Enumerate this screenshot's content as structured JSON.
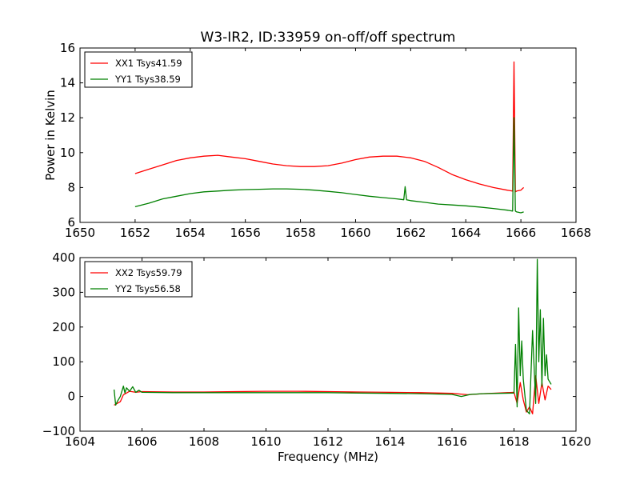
{
  "title": "W3-IR2, ID:33959 on-off/off spectrum",
  "colors": {
    "xx": "#ff0000",
    "yy": "#008000"
  },
  "chart_data": [
    {
      "type": "line",
      "title": "W3-IR2, ID:33959 on-off/off spectrum",
      "xlabel": "",
      "ylabel": "Power in Kelvin",
      "xlim": [
        1650,
        1668
      ],
      "ylim": [
        6,
        16
      ],
      "xticks": [
        1650,
        1652,
        1654,
        1656,
        1658,
        1660,
        1662,
        1664,
        1666,
        1668
      ],
      "yticks": [
        6,
        8,
        10,
        12,
        14,
        16
      ],
      "grid": false,
      "legend": "top-left",
      "series": [
        {
          "name": "XX1 Tsys41.59",
          "color": "#ff0000",
          "x": [
            1652.0,
            1652.5,
            1653.0,
            1653.5,
            1654.0,
            1654.5,
            1655.0,
            1655.5,
            1656.0,
            1656.5,
            1657.0,
            1657.5,
            1658.0,
            1658.5,
            1659.0,
            1659.5,
            1660.0,
            1660.5,
            1661.0,
            1661.5,
            1662.0,
            1662.5,
            1663.0,
            1663.5,
            1664.0,
            1664.5,
            1665.0,
            1665.5,
            1665.7,
            1665.75,
            1665.8,
            1665.85,
            1666.0,
            1666.1
          ],
          "y": [
            8.8,
            9.05,
            9.3,
            9.55,
            9.7,
            9.8,
            9.85,
            9.75,
            9.65,
            9.5,
            9.35,
            9.25,
            9.2,
            9.2,
            9.25,
            9.4,
            9.6,
            9.75,
            9.8,
            9.8,
            9.7,
            9.5,
            9.15,
            8.75,
            8.45,
            8.2,
            8.0,
            7.85,
            7.8,
            15.2,
            7.75,
            7.8,
            7.85,
            8.0
          ]
        },
        {
          "name": "YY1 Tsys38.59",
          "color": "#008000",
          "x": [
            1652.0,
            1652.5,
            1653.0,
            1653.5,
            1654.0,
            1654.5,
            1655.0,
            1655.5,
            1656.0,
            1656.5,
            1657.0,
            1657.5,
            1658.0,
            1658.5,
            1659.0,
            1659.5,
            1660.0,
            1660.5,
            1661.0,
            1661.5,
            1661.75,
            1661.8,
            1661.85,
            1662.0,
            1662.5,
            1663.0,
            1663.5,
            1664.0,
            1664.5,
            1665.0,
            1665.5,
            1665.7,
            1665.75,
            1665.8,
            1665.85,
            1666.0,
            1666.1
          ],
          "y": [
            6.9,
            7.1,
            7.35,
            7.5,
            7.65,
            7.75,
            7.8,
            7.85,
            7.88,
            7.9,
            7.92,
            7.92,
            7.9,
            7.85,
            7.78,
            7.7,
            7.6,
            7.5,
            7.42,
            7.35,
            7.3,
            8.05,
            7.3,
            7.25,
            7.15,
            7.05,
            7.0,
            6.95,
            6.88,
            6.8,
            6.7,
            6.65,
            12.0,
            6.65,
            6.6,
            6.55,
            6.6
          ]
        }
      ]
    },
    {
      "type": "line",
      "title": "",
      "xlabel": "Frequency (MHz)",
      "ylabel": "",
      "xlim": [
        1604,
        1620
      ],
      "ylim": [
        -100,
        400
      ],
      "xticks": [
        1604,
        1606,
        1608,
        1610,
        1612,
        1614,
        1616,
        1618,
        1620
      ],
      "yticks": [
        -100,
        0,
        100,
        200,
        300,
        400
      ],
      "grid": false,
      "legend": "top-left",
      "series": [
        {
          "name": "XX2 Tsys59.79",
          "color": "#ff0000",
          "x": [
            1605.1,
            1605.2,
            1605.3,
            1605.4,
            1605.5,
            1605.6,
            1605.8,
            1606.0,
            1607.0,
            1608.0,
            1609.0,
            1610.0,
            1611.0,
            1612.0,
            1613.0,
            1614.0,
            1615.0,
            1616.0,
            1616.5,
            1617.0,
            1617.5,
            1618.0,
            1618.1,
            1618.2,
            1618.3,
            1618.4,
            1618.5,
            1618.6,
            1618.7,
            1618.8,
            1618.9,
            1619.0,
            1619.1,
            1619.2
          ],
          "y": [
            -25,
            -20,
            -15,
            5,
            10,
            15,
            12,
            14,
            13,
            13,
            14,
            15,
            15,
            14,
            13,
            12,
            11,
            9,
            5,
            8,
            10,
            12,
            -20,
            40,
            -10,
            -45,
            -30,
            -50,
            60,
            -20,
            40,
            -10,
            30,
            20
          ]
        },
        {
          "name": "YY2 Tsys56.58",
          "color": "#008000",
          "x": [
            1605.1,
            1605.15,
            1605.2,
            1605.3,
            1605.4,
            1605.45,
            1605.5,
            1605.6,
            1605.7,
            1605.8,
            1605.9,
            1606.0,
            1607.0,
            1608.0,
            1609.0,
            1610.0,
            1611.0,
            1612.0,
            1613.0,
            1614.0,
            1615.0,
            1616.0,
            1616.3,
            1616.6,
            1617.0,
            1617.5,
            1618.0,
            1618.05,
            1618.1,
            1618.15,
            1618.2,
            1618.25,
            1618.3,
            1618.4,
            1618.5,
            1618.6,
            1618.7,
            1618.75,
            1618.8,
            1618.85,
            1618.9,
            1618.95,
            1619.0,
            1619.05,
            1619.1,
            1619.2
          ],
          "y": [
            20,
            -25,
            -15,
            0,
            30,
            10,
            25,
            15,
            28,
            12,
            18,
            12,
            11,
            11,
            11,
            11,
            11,
            11,
            10,
            9,
            8,
            6,
            0,
            6,
            8,
            9,
            10,
            150,
            -30,
            255,
            60,
            160,
            50,
            -40,
            -50,
            190,
            -20,
            395,
            100,
            250,
            30,
            225,
            60,
            120,
            50,
            35
          ]
        }
      ]
    }
  ]
}
